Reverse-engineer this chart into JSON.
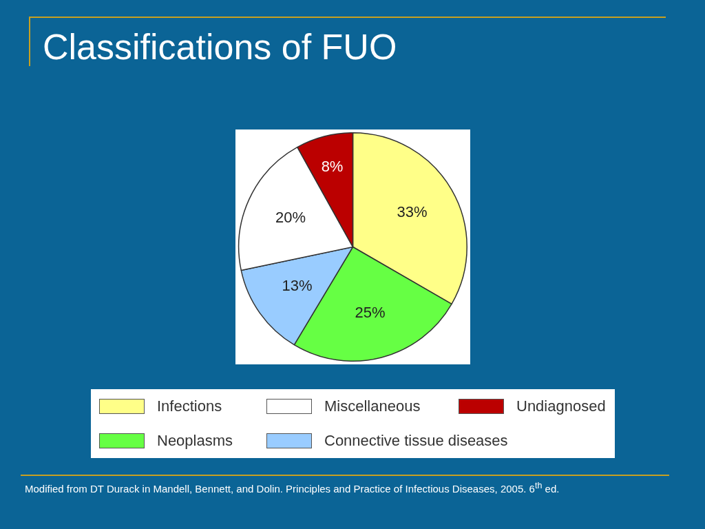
{
  "chart_data": {
    "type": "pie",
    "title": "Classifications of FUO",
    "categories": [
      "Infections",
      "Neoplasms",
      "Connective tissue diseases",
      "Miscellaneous",
      "Undiagnosed"
    ],
    "values": [
      33,
      25,
      13,
      20,
      8
    ],
    "colors": [
      "#ffff88",
      "#66ff44",
      "#99ccff",
      "#ffffff",
      "#bb0000"
    ],
    "value_labels": [
      "33%",
      "25%",
      "13%",
      "20%",
      "8%"
    ],
    "legend": "bottom",
    "annotations": [
      "Modified from DT Durack in Mandell, Bennett, and Dolin. Principles and Practice of Infectious Diseases, 2005. 6$^{th}$ ed."
    ]
  }
}
